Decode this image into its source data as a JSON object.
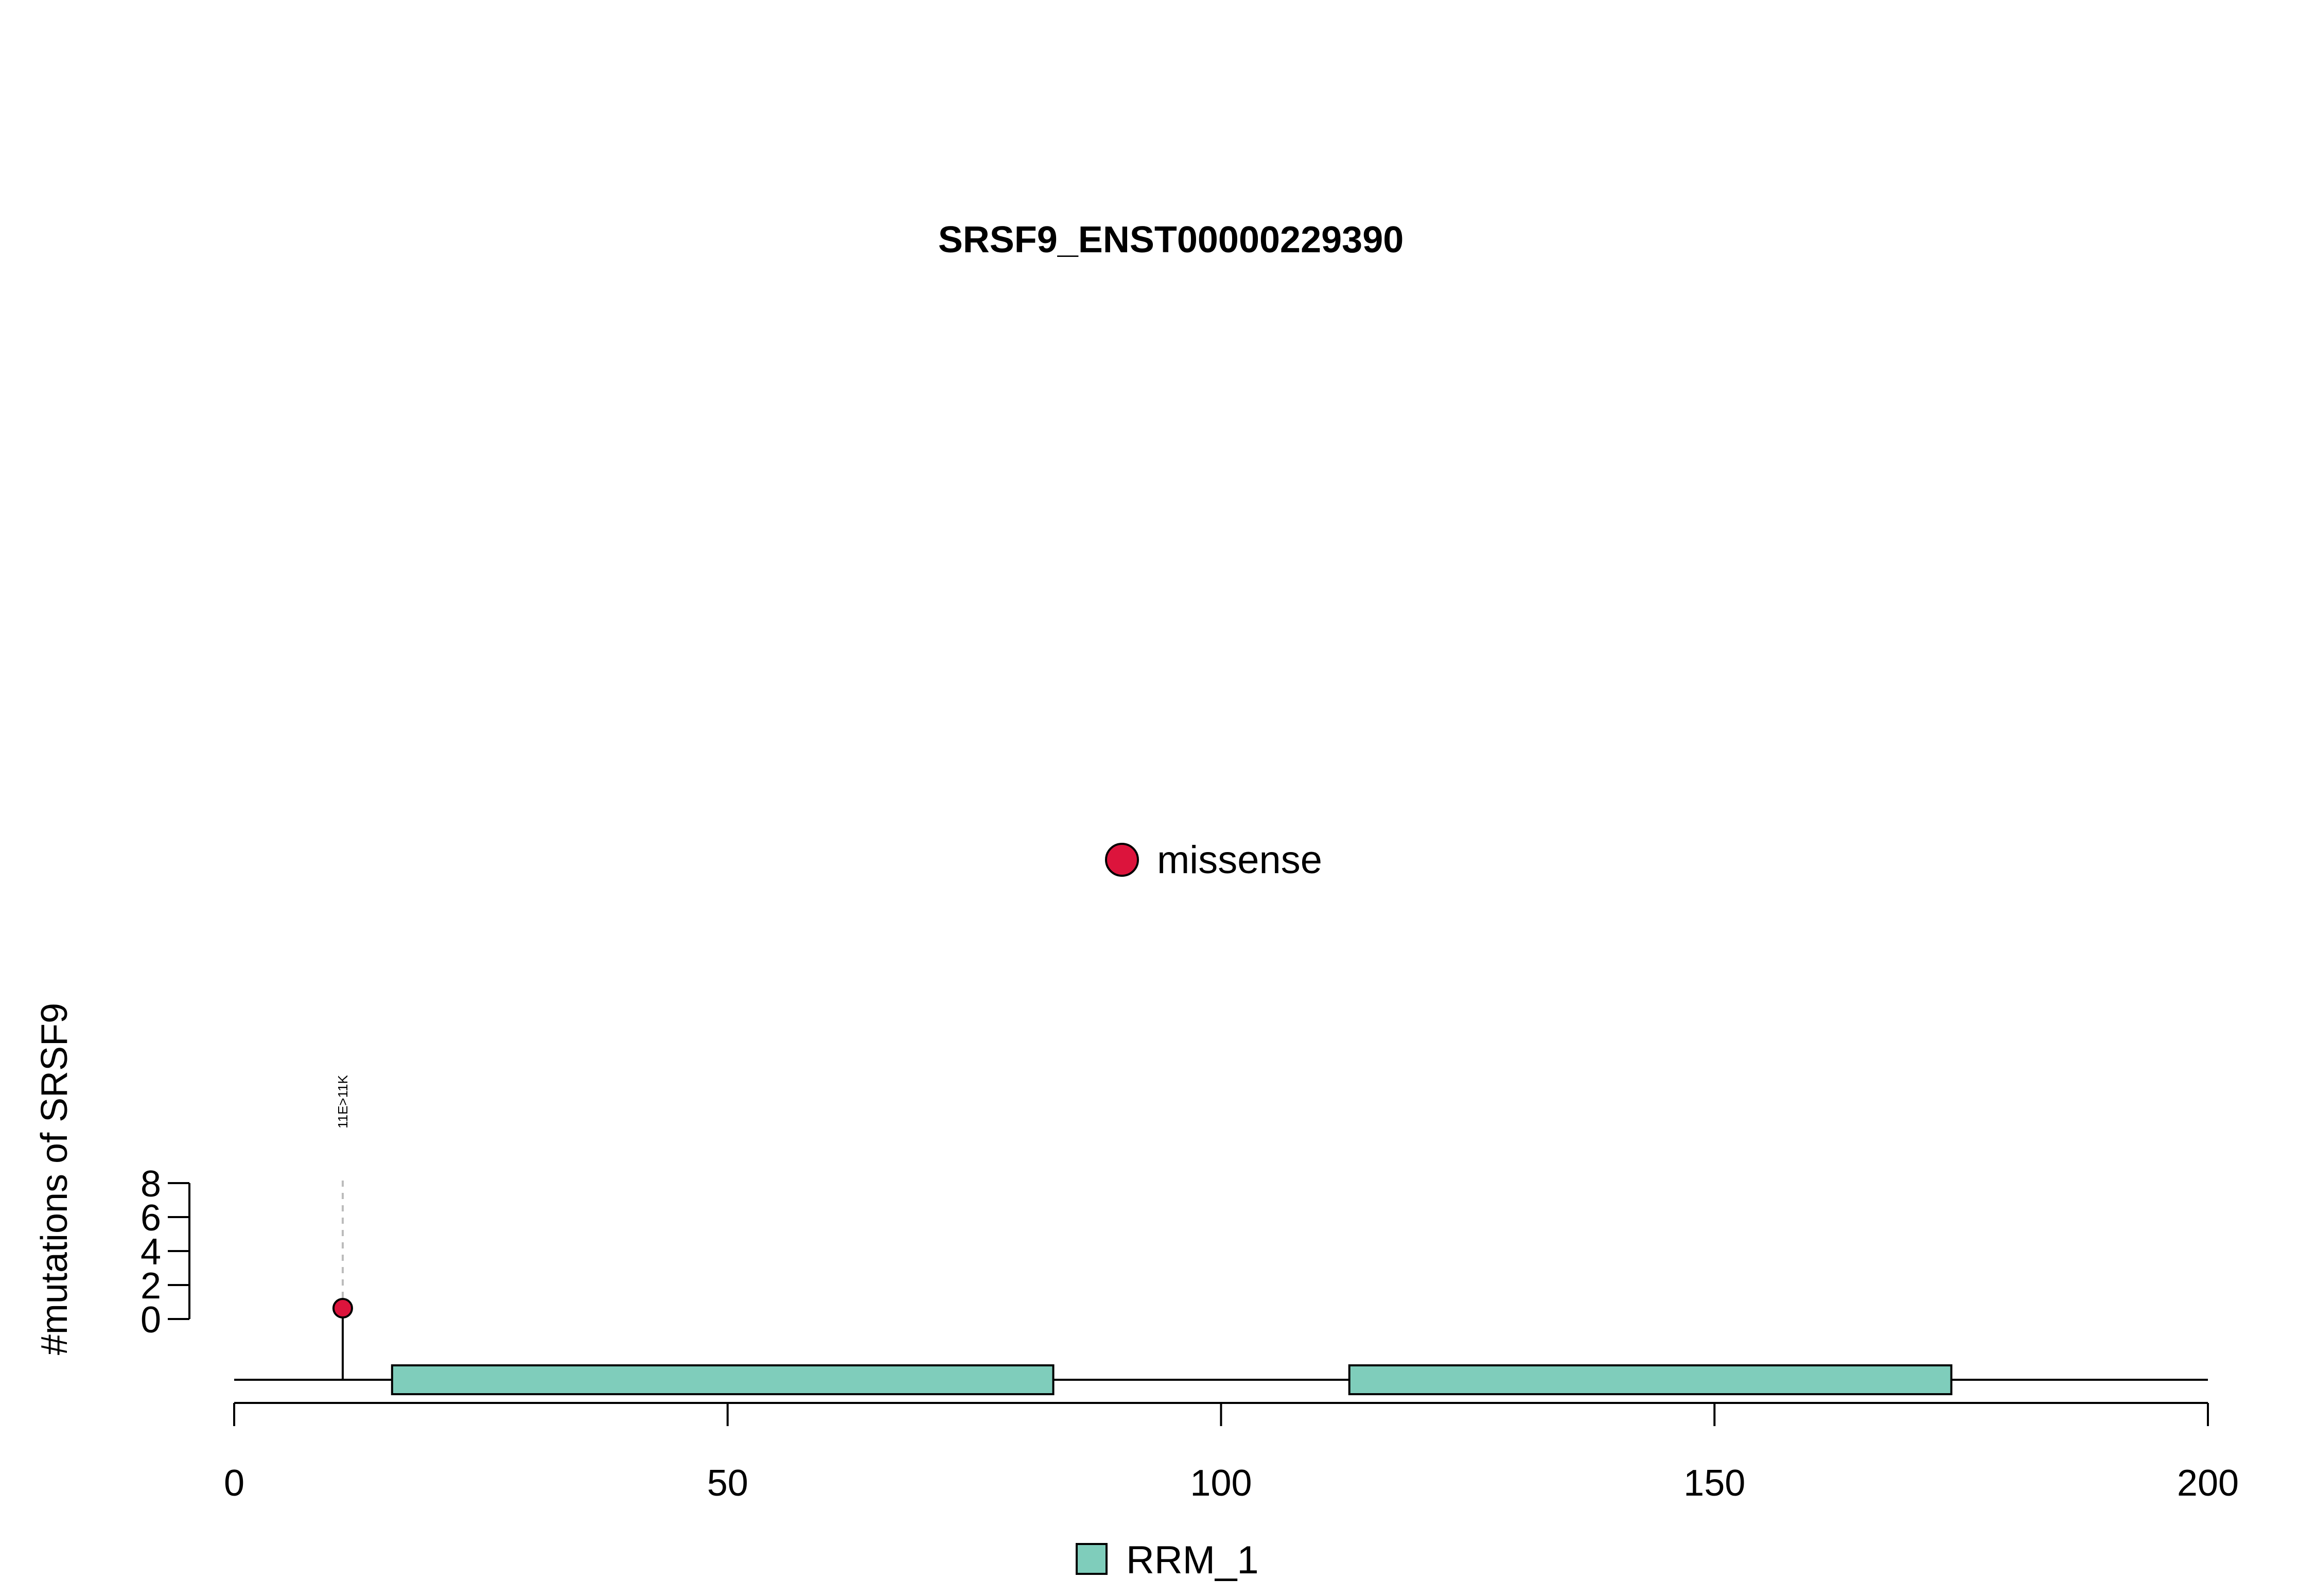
{
  "chart_data": {
    "type": "lollipop",
    "title": "SRSF9_ENST00000229390",
    "ylabel": "#mutations of SRSF9",
    "xlim": [
      0,
      200
    ],
    "x_ticks": [
      0,
      50,
      100,
      150,
      200
    ],
    "ylim": [
      0,
      8
    ],
    "y_ticks": [
      0,
      2,
      4,
      6,
      8
    ],
    "protein_length": 200,
    "domains": [
      {
        "name": "RRM_1",
        "start": 16,
        "end": 83,
        "color": "#7FCDBB"
      },
      {
        "name": "RRM_1",
        "start": 113,
        "end": 174,
        "color": "#7FCDBB"
      }
    ],
    "mutations": [
      {
        "position": 11,
        "label": "11E>11K",
        "count": 1,
        "type": "missense",
        "color": "#DC143C"
      }
    ],
    "type_legend": [
      {
        "label": "missense",
        "color": "#DC143C"
      }
    ],
    "domain_legend": [
      {
        "label": "RRM_1",
        "color": "#7FCDBB"
      }
    ]
  }
}
